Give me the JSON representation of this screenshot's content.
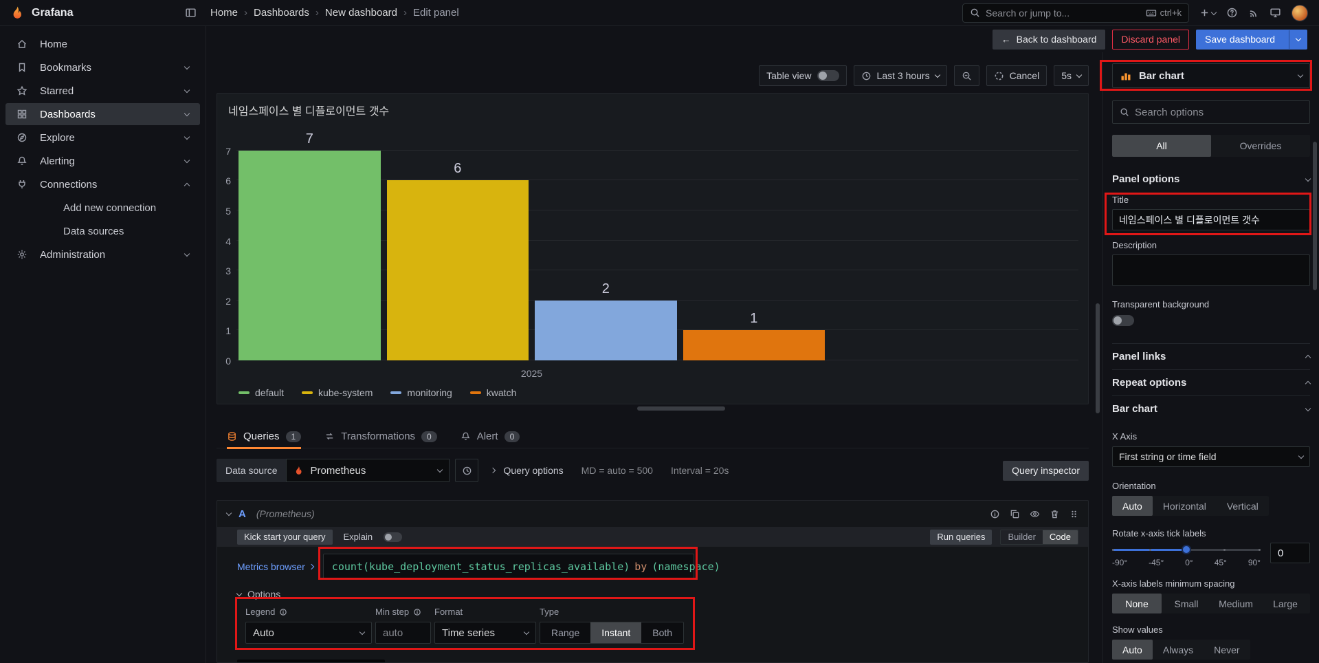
{
  "colors": {
    "accent": "#ff8833",
    "primary": "#3d71d9",
    "danger": "#e02f44",
    "annotation": "#e01717"
  },
  "topnav": {
    "brand": "Grafana",
    "breadcrumb": [
      "Home",
      "Dashboards",
      "New dashboard",
      "Edit panel"
    ],
    "search": {
      "placeholder": "Search or jump to...",
      "shortcut": "ctrl+k"
    }
  },
  "toolbar": {
    "back": "Back to dashboard",
    "discard": "Discard panel",
    "save": "Save dashboard"
  },
  "sidebar": {
    "items": [
      {
        "label": "Home"
      },
      {
        "label": "Bookmarks"
      },
      {
        "label": "Starred"
      },
      {
        "label": "Dashboards"
      },
      {
        "label": "Explore"
      },
      {
        "label": "Alerting"
      },
      {
        "label": "Connections"
      },
      {
        "label": "Add new connection"
      },
      {
        "label": "Data sources"
      },
      {
        "label": "Administration"
      }
    ]
  },
  "panel_toolbar": {
    "table_view": "Table view",
    "time_range": "Last 3 hours",
    "cancel": "Cancel",
    "refresh": "5s"
  },
  "chart_data": {
    "type": "bar",
    "title": "네임스페이스 별 디플로이먼트 갯수",
    "categories": [
      "default",
      "kube-system",
      "monitoring",
      "kwatch"
    ],
    "values": [
      7,
      6,
      2,
      1
    ],
    "colors": [
      "#73bf69",
      "#d8b40e",
      "#82a7dc",
      "#e0750e"
    ],
    "xlabel": "2025",
    "ylim": [
      0,
      7
    ],
    "yticks": [
      0,
      1,
      2,
      3,
      4,
      5,
      6,
      7
    ],
    "grid": true,
    "legend_position": "bottom"
  },
  "query_editor": {
    "tabs": [
      {
        "label": "Queries",
        "count": "1"
      },
      {
        "label": "Transformations",
        "count": "0"
      },
      {
        "label": "Alert",
        "count": "0"
      }
    ],
    "datasource": {
      "label": "Data source",
      "value": "Prometheus"
    },
    "options_summary": {
      "label": "Query options",
      "md": "MD = auto = 500",
      "interval": "Interval = 20s"
    },
    "inspector": "Query inspector",
    "row": {
      "ref": "A",
      "ds": "(Prometheus)"
    },
    "kickstart": "Kick start your query",
    "explain": "Explain",
    "run": "Run queries",
    "builder": "Builder",
    "code": "Code",
    "metrics_browser": "Metrics browser",
    "expression": {
      "p1": "count(kube_deployment_status_replicas_available)",
      "p2": "by",
      "p3": "(namespace)"
    },
    "opts": {
      "header": "Options",
      "legend": {
        "label": "Legend",
        "value": "Auto"
      },
      "min_step": {
        "label": "Min step",
        "placeholder": "auto"
      },
      "format": {
        "label": "Format",
        "value": "Time series"
      },
      "type": {
        "label": "Type",
        "options": [
          "Range",
          "Instant",
          "Both"
        ],
        "selected": "Instant"
      }
    }
  },
  "options_pane": {
    "viz": "Bar chart",
    "search_placeholder": "Search options",
    "tabs": {
      "all": "All",
      "overrides": "Overrides"
    },
    "panel_options": {
      "header": "Panel options",
      "title_label": "Title",
      "title_value": "네임스페이스 별 디플로이먼트 갯수",
      "description_label": "Description",
      "transparent_label": "Transparent background"
    },
    "links_header": "Panel links",
    "repeat_header": "Repeat options",
    "barchart": {
      "header": "Bar chart",
      "xaxis_label": "X Axis",
      "xaxis_value": "First string or time field",
      "orientation": {
        "label": "Orientation",
        "options": [
          "Auto",
          "Horizontal",
          "Vertical"
        ],
        "selected": "Auto"
      },
      "rotate": {
        "label": "Rotate x-axis tick labels",
        "ticks": [
          "-90°",
          "-45°",
          "0°",
          "45°",
          "90°"
        ],
        "value": "0"
      },
      "spacing": {
        "label": "X-axis labels minimum spacing",
        "options": [
          "None",
          "Small",
          "Medium",
          "Large"
        ],
        "selected": "None"
      },
      "show_values": {
        "label": "Show values",
        "options": [
          "Auto",
          "Always",
          "Never"
        ],
        "selected": "Auto"
      }
    }
  }
}
